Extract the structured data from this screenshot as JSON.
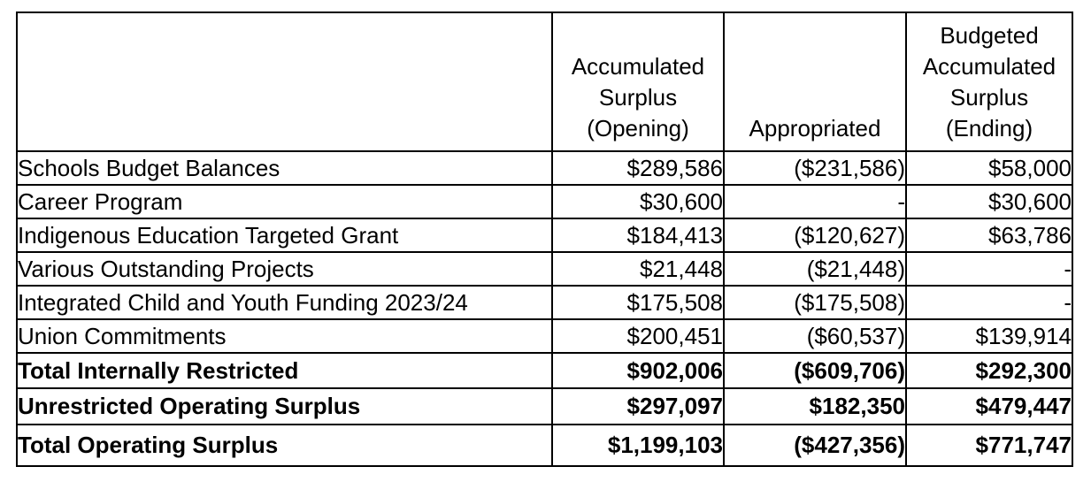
{
  "colors": {
    "background": "#ffffff",
    "border": "#000000",
    "text": "#000000"
  },
  "table": {
    "columns": [
      {
        "label": ""
      },
      {
        "label": "Accumulated\nSurplus\n(Opening)"
      },
      {
        "label": "Appropriated"
      },
      {
        "label": "Budgeted\nAccumulated\nSurplus\n(Ending)"
      }
    ],
    "rows": [
      {
        "label": "Schools Budget Balances",
        "opening": "$289,586",
        "appropriated": "($231,586)",
        "ending": "$58,000",
        "bold": false
      },
      {
        "label": "Career Program",
        "opening": "$30,600",
        "appropriated": "-",
        "ending": "$30,600",
        "bold": false
      },
      {
        "label": "Indigenous Education Targeted Grant",
        "opening": "$184,413",
        "appropriated": "($120,627)",
        "ending": "$63,786",
        "bold": false
      },
      {
        "label": "Various Outstanding Projects",
        "opening": "$21,448",
        "appropriated": "($21,448)",
        "ending": "-",
        "bold": false
      },
      {
        "label": "Integrated Child and Youth Funding 2023/24",
        "opening": "$175,508",
        "appropriated": "($175,508)",
        "ending": "-",
        "bold": false
      },
      {
        "label": "Union Commitments",
        "opening": "$200,451",
        "appropriated": "($60,537)",
        "ending": "$139,914",
        "bold": false
      },
      {
        "label": "Total Internally Restricted",
        "opening": "$902,006",
        "appropriated": "($609,706)",
        "ending": "$292,300",
        "bold": true
      },
      {
        "label": "Unrestricted Operating Surplus",
        "opening": "$297,097",
        "appropriated": "$182,350",
        "ending": "$479,447",
        "bold": true
      },
      {
        "label": "Total Operating Surplus",
        "opening": "$1,199,103",
        "appropriated": "($427,356)",
        "ending": "$771,747",
        "bold": true
      }
    ]
  }
}
